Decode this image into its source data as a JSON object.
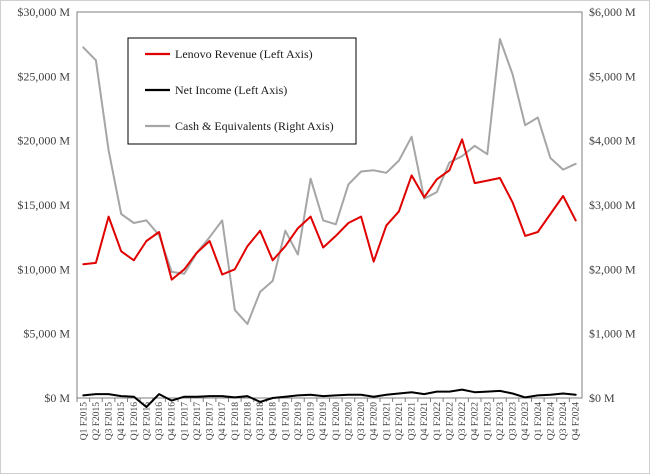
{
  "chart_data": {
    "type": "line",
    "title": "",
    "xlabel": "",
    "ylabel_left": "",
    "ylabel_right": "",
    "left_axis": {
      "ylim": [
        0,
        30000
      ],
      "ticks": [
        0,
        5000,
        10000,
        15000,
        20000,
        25000,
        30000
      ],
      "tick_labels": [
        "$0 M",
        "$5,000 M",
        "$10,000 M",
        "$15,000 M",
        "$20,000 M",
        "$25,000 M",
        "$30,000 M"
      ]
    },
    "right_axis": {
      "ylim": [
        0,
        6000
      ],
      "ticks": [
        0,
        1000,
        2000,
        3000,
        4000,
        5000,
        6000
      ],
      "tick_labels": [
        "$0 M",
        "$1,000 M",
        "$2,000 M",
        "$3,000 M",
        "$4,000 M",
        "$5,000 M",
        "$6,000 M"
      ]
    },
    "categories": [
      "Q1 F2015",
      "Q2 F2015",
      "Q3 F2015",
      "Q4 F2015",
      "Q1 F2016",
      "Q2 F2016",
      "Q3 F2016",
      "Q4 F2016",
      "Q1 F2017",
      "Q2 F2017",
      "Q3 F2017",
      "Q4 F2017",
      "Q1 F2018",
      "Q2 F2018",
      "Q3 F2018",
      "Q4 F2018",
      "Q1 F2019",
      "Q2 F2019",
      "Q3 F2019",
      "Q4 F2019",
      "Q1 F2020",
      "Q2 F2020",
      "Q3 F2020",
      "Q4 F2020",
      "Q1 F2021",
      "Q2 F2021",
      "Q3 F2021",
      "Q4 F2021",
      "Q1 F2022",
      "Q2 F2022",
      "Q3 F2022",
      "Q4 F2022",
      "Q1 F2023",
      "Q2 F2023",
      "Q3 F2023",
      "Q4 F2023",
      "Q1 F2024",
      "Q2 F2024",
      "Q3 F2024",
      "Q4 F2024"
    ],
    "series": [
      {
        "name": "Lenovo Revenue (Left Axis)",
        "axis": "left",
        "color": "#e00000",
        "values": [
          10400,
          10500,
          14100,
          11400,
          10700,
          12200,
          12900,
          9200,
          10000,
          11300,
          12200,
          9600,
          10000,
          11800,
          13000,
          10700,
          11800,
          13200,
          14100,
          11700,
          12600,
          13600,
          14100,
          10600,
          13400,
          14500,
          17300,
          15600,
          17000,
          17700,
          20100,
          16700,
          16900,
          17100,
          15200,
          12600,
          12900,
          14300,
          15700,
          13800
        ]
      },
      {
        "name": "Net Income (Left Axis)",
        "axis": "left",
        "color": "#000000",
        "values": [
          200,
          300,
          300,
          150,
          100,
          -700,
          300,
          -200,
          100,
          100,
          150,
          150,
          50,
          150,
          -300,
          0,
          100,
          200,
          250,
          150,
          200,
          250,
          250,
          100,
          250,
          350,
          450,
          300,
          500,
          500,
          650,
          450,
          500,
          550,
          350,
          50,
          200,
          250,
          350,
          250
        ]
      },
      {
        "name": "Cash & Equivalents (Right Axis)",
        "axis": "right",
        "color": "#a6a6a6",
        "values": [
          5450,
          5250,
          3850,
          2860,
          2720,
          2760,
          2530,
          1960,
          1930,
          2260,
          2500,
          2760,
          1370,
          1150,
          1650,
          1820,
          2600,
          2230,
          3410,
          2760,
          2700,
          3320,
          3520,
          3540,
          3500,
          3690,
          4060,
          3100,
          3200,
          3660,
          3760,
          3920,
          3790,
          5580,
          5030,
          4240,
          4360,
          3730,
          3550,
          3640
        ]
      }
    ],
    "legend": {
      "placement": "top-left, inside plot area",
      "entries": [
        "Lenovo Revenue (Left Axis)",
        "Net Income (Left Axis)",
        "Cash & Equivalents (Right Axis)"
      ]
    },
    "grid": false
  }
}
